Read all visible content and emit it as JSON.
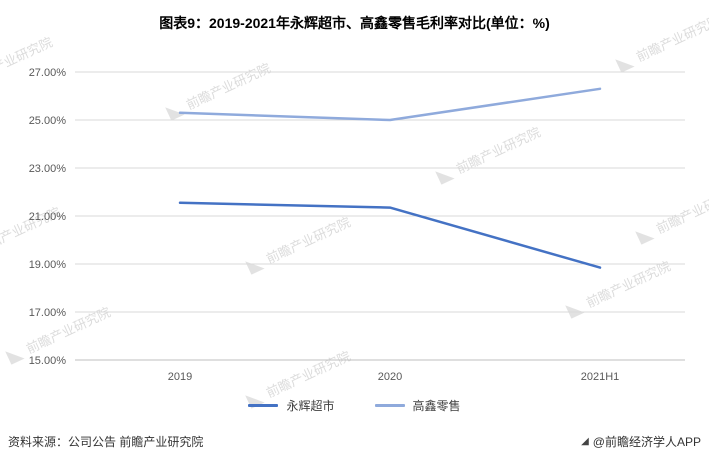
{
  "title": "图表9：2019-2021年永辉超市、高鑫零售毛利率对比(单位：%)",
  "chart_data": {
    "type": "line",
    "title": "图表9：2019-2021年永辉超市、高鑫零售毛利率对比(单位：%)",
    "categories": [
      "2019",
      "2020",
      "2021H1"
    ],
    "series": [
      {
        "name": "永辉超市",
        "values": [
          21.55,
          21.35,
          18.85
        ],
        "color": "#4472C4"
      },
      {
        "name": "高鑫零售",
        "values": [
          25.3,
          25.0,
          26.3
        ],
        "color": "#8FAADC"
      }
    ],
    "xlabel": "",
    "ylabel": "",
    "ylim": [
      15,
      27
    ],
    "ytick_step": 2,
    "ytick_suffix": "%",
    "grid": true,
    "legend_position": "bottom"
  },
  "watermark": {
    "text": "前瞻产业研究院"
  },
  "footer": {
    "source": "资料来源：公司公告 前瞻产业研究院",
    "credit": "@前瞻经济学人APP"
  },
  "colors": {
    "grid": "#D9D9D9",
    "axis": "#BFBFBF",
    "tick_text": "#595959",
    "watermark": "#DCDCDC"
  }
}
